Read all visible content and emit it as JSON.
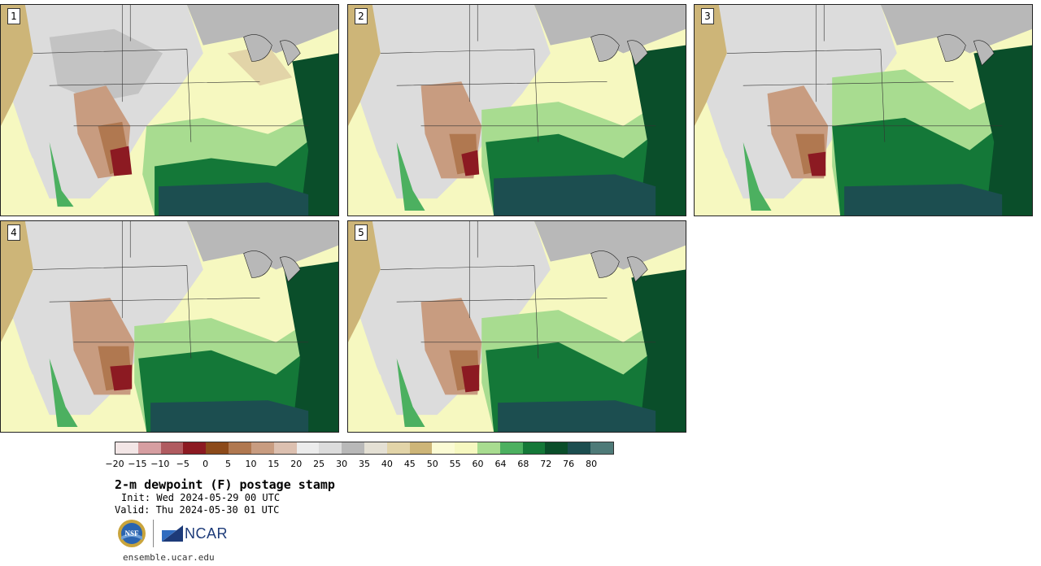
{
  "product": {
    "title": "2-m dewpoint (F) postage stamp",
    "init": "Init: Wed 2024-05-29 00 UTC",
    "valid": "Valid: Thu 2024-05-30 01 UTC",
    "website": "ensemble.ucar.edu"
  },
  "logos": {
    "nsf_text": "NSF",
    "ncar_text": "NCAR"
  },
  "members": [
    {
      "label": "1"
    },
    {
      "label": "2"
    },
    {
      "label": "3"
    },
    {
      "label": "4"
    },
    {
      "label": "5"
    }
  ],
  "colorbar": {
    "tick_labels": [
      "−20",
      "−15",
      "−10",
      "−5",
      "0",
      "5",
      "10",
      "15",
      "20",
      "25",
      "30",
      "35",
      "40",
      "45",
      "50",
      "55",
      "60",
      "64",
      "68",
      "72",
      "76",
      "80"
    ],
    "colors": [
      "#f3e6e6",
      "#d69ea1",
      "#b05b60",
      "#8c1a22",
      "#8c4a1a",
      "#b07850",
      "#c89c80",
      "#dcc0b0",
      "#ececec",
      "#dcdcdc",
      "#b8b8b8",
      "#e4e0d4",
      "#e2d4a8",
      "#cdb578",
      "#fbfbd4",
      "#f6f8c0",
      "#a8dc90",
      "#4cb060",
      "#147838",
      "#0a4e2a",
      "#1c4e50",
      "#4e7a78"
    ]
  },
  "map_colors": {
    "gulf": "#1c4e50",
    "deep_green": "#0a4e2a",
    "green": "#147838",
    "mid_green": "#4cb060",
    "light_green": "#a8dc90",
    "pale_yellow": "#f6f8c0",
    "tan": "#cdb578",
    "light_tan": "#e2d4a8",
    "gray": "#b8b8b8",
    "light_gray": "#dcdcdc",
    "brown": "#b07850",
    "dark_red": "#8c1a22"
  }
}
